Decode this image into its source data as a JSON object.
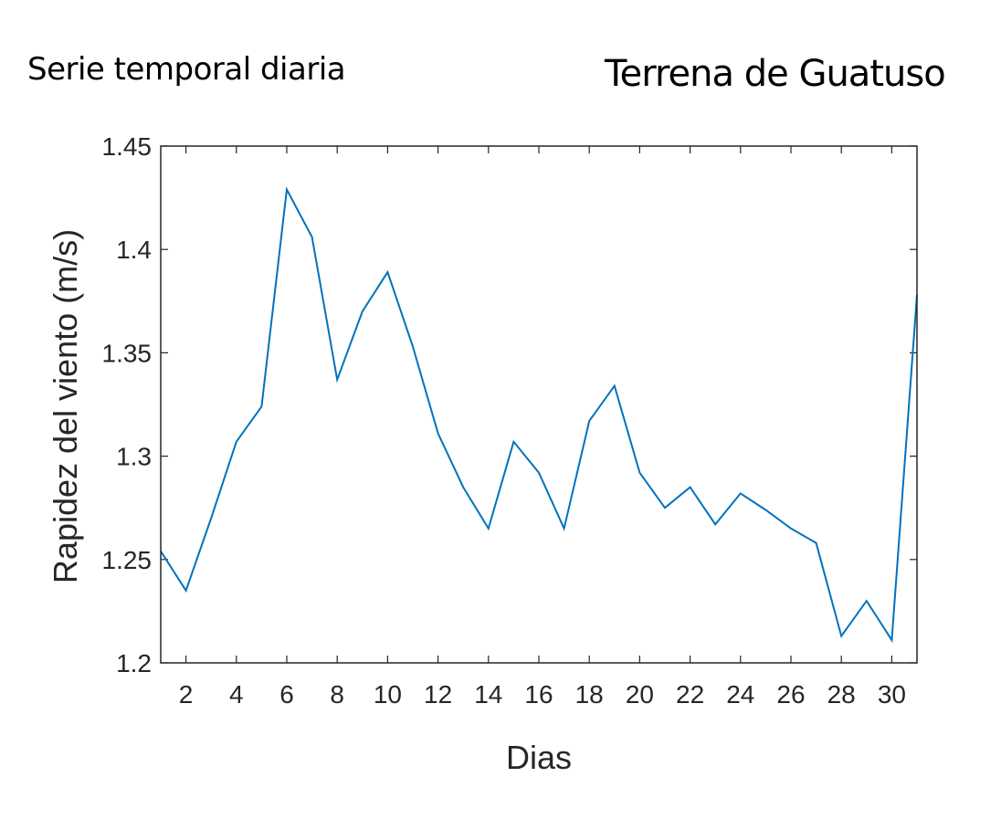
{
  "header": {
    "left_text": "Serie temporal diaria",
    "right_text": "Terrena de Guatuso"
  },
  "chart_data": {
    "type": "line",
    "title": "",
    "xlabel": "Dias",
    "ylabel": "Rapidez del viento (m/s)",
    "xlim": [
      1,
      31
    ],
    "ylim": [
      1.2,
      1.45
    ],
    "xticks": [
      2,
      4,
      6,
      8,
      10,
      12,
      14,
      16,
      18,
      20,
      22,
      24,
      26,
      28,
      30
    ],
    "yticks": [
      1.2,
      1.25,
      1.3,
      1.35,
      1.4,
      1.45
    ],
    "ytick_labels": [
      "1.2",
      "1.25",
      "1.3",
      "1.35",
      "1.4",
      "1.45"
    ],
    "grid": false,
    "line_color": "#0072BD",
    "series": [
      {
        "x": [
          1,
          2,
          3,
          4,
          5,
          6,
          7,
          8,
          9,
          10,
          11,
          12,
          13,
          14,
          15,
          16,
          17,
          18,
          19,
          20,
          21,
          22,
          23,
          24,
          25,
          26,
          27,
          28,
          29,
          30,
          31
        ],
        "values": [
          1.254,
          1.235,
          1.27,
          1.307,
          1.324,
          1.429,
          1.406,
          1.337,
          1.37,
          1.389,
          1.353,
          1.311,
          1.285,
          1.265,
          1.307,
          1.292,
          1.265,
          1.317,
          1.334,
          1.292,
          1.275,
          1.285,
          1.267,
          1.282,
          1.274,
          1.265,
          1.258,
          1.213,
          1.23,
          1.211,
          1.378
        ]
      }
    ]
  }
}
